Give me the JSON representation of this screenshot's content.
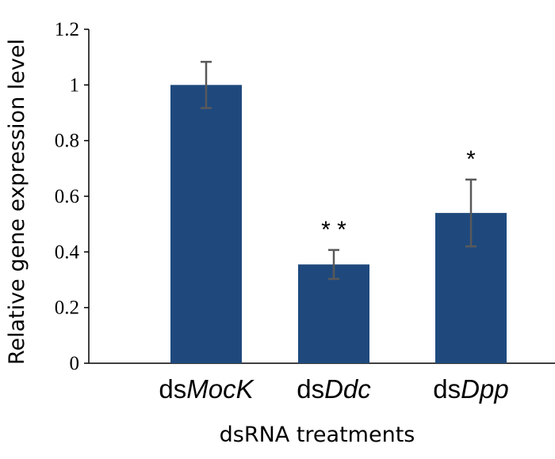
{
  "chart_data": {
    "type": "bar",
    "title": "",
    "xlabel": "dsRNA treatments",
    "ylabel": "Relative gene expression level",
    "ylim": [
      0,
      1.2
    ],
    "yticks": [
      0,
      0.2,
      0.4,
      0.6,
      0.8,
      1,
      1.2
    ],
    "ytick_labels": [
      "0",
      "0.2",
      "0.4",
      "0.6",
      "0.8",
      "1",
      "1.2"
    ],
    "categories": [
      {
        "prefix": "ds",
        "italic": "MocK"
      },
      {
        "prefix": "ds",
        "italic": "Ddc"
      },
      {
        "prefix": "ds",
        "italic": "Dpp"
      }
    ],
    "values": [
      1.0,
      0.355,
      0.54
    ],
    "errors": [
      0.083,
      0.052,
      0.12
    ],
    "significance": [
      "",
      "* *",
      "*"
    ],
    "bar_color": "#1f497d",
    "error_color": "#595959",
    "grid": false,
    "legend": "none"
  }
}
